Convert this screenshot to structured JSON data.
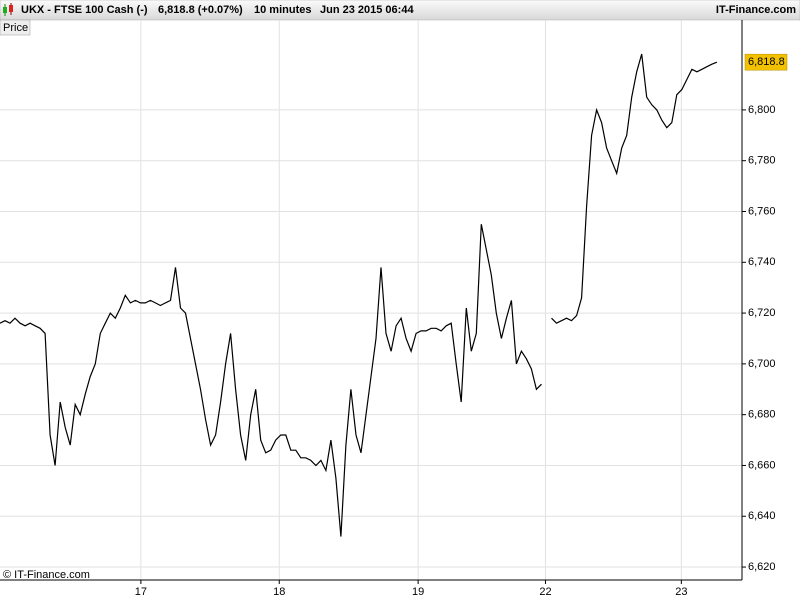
{
  "header": {
    "symbol": "UKX - FTSE 100 Cash (-)",
    "quote": "6,818.8 (+0.07%)",
    "interval": "10 minutes",
    "timestamp": "Jun 23 2015 06:44",
    "brand": "IT-Finance.com"
  },
  "chart_data": {
    "type": "line",
    "panel_label": "Price",
    "copyright": "© IT-Finance.com",
    "color": "#000000",
    "grid": true,
    "last_price_label": "6,818.8",
    "values": [
      6716,
      6717,
      6716,
      6718,
      6716,
      6715,
      6716,
      6715,
      6714,
      6712,
      6672,
      6660,
      6685,
      6675,
      6668,
      6684,
      6680,
      6688,
      6695,
      6700,
      6712,
      6716,
      6720,
      6718,
      6722,
      6727,
      6724,
      6725,
      6724,
      6724,
      6725,
      6724,
      6723,
      6724,
      6725,
      6738,
      6722,
      6720,
      6710,
      6700,
      6690,
      6678,
      6668,
      6672,
      6685,
      6700,
      6712,
      6690,
      6672,
      6662,
      6680,
      6690,
      6670,
      6665,
      6666,
      6670,
      6672,
      6672,
      6666,
      6666,
      6663,
      6663,
      6662,
      6660,
      6662,
      6658,
      6670,
      6655,
      6632,
      6668,
      6690,
      6672,
      6665,
      6680,
      6695,
      6710,
      6738,
      6712,
      6705,
      6715,
      6718,
      6710,
      6705,
      6712,
      6713,
      6713,
      6714,
      6714,
      6713,
      6715,
      6716,
      6700,
      6685,
      6722,
      6705,
      6712,
      6755,
      6745,
      6735,
      6720,
      6710,
      6718,
      6725,
      6700,
      6705,
      6702,
      6698,
      6690,
      6692,
      null,
      6718,
      6716,
      6717,
      6718,
      6717,
      6719,
      6726,
      6762,
      6790,
      6800,
      6795,
      6785,
      6780,
      6775,
      6785,
      6790,
      6805,
      6815,
      6822,
      6805,
      6802,
      6800,
      6796,
      6793,
      6795,
      6806,
      6808,
      6812,
      6816,
      6815,
      6816,
      6817,
      6818,
      6818.8
    ],
    "xlim": [
      0,
      148
    ],
    "xticks": [
      {
        "value": 28.1,
        "label": "17"
      },
      {
        "value": 55.7,
        "label": "18"
      },
      {
        "value": 83.4,
        "label": "19"
      },
      {
        "value": 108.8,
        "label": "22"
      },
      {
        "value": 135.9,
        "label": "23"
      }
    ],
    "ylim": [
      6614.9,
      6835.4
    ],
    "yticks": [
      {
        "value": 6620,
        "label": "6,620"
      },
      {
        "value": 6640,
        "label": "6,640"
      },
      {
        "value": 6660,
        "label": "6,660"
      },
      {
        "value": 6680,
        "label": "6,680"
      },
      {
        "value": 6700,
        "label": "6,700"
      },
      {
        "value": 6720,
        "label": "6,720"
      },
      {
        "value": 6740,
        "label": "6,740"
      },
      {
        "value": 6760,
        "label": "6,760"
      },
      {
        "value": 6780,
        "label": "6,780"
      },
      {
        "value": 6800,
        "label": "6,800"
      }
    ]
  }
}
